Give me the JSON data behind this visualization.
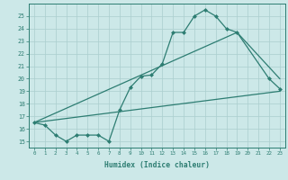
{
  "line1_x": [
    0,
    1,
    2,
    3,
    4,
    5,
    6,
    7,
    8,
    9,
    10,
    11,
    12,
    13,
    14,
    15,
    16,
    17,
    18,
    19,
    22,
    23
  ],
  "line1_y": [
    16.5,
    16.3,
    15.5,
    15.0,
    15.5,
    15.5,
    15.5,
    15.0,
    17.5,
    19.3,
    20.2,
    20.3,
    21.2,
    23.7,
    23.7,
    25.0,
    25.5,
    25.0,
    24.0,
    23.7,
    20.0,
    19.2
  ],
  "line2_x": [
    0,
    23
  ],
  "line2_y": [
    16.5,
    19.0
  ],
  "line3_x": [
    0,
    19,
    23
  ],
  "line3_y": [
    16.5,
    23.7,
    20.0
  ],
  "color": "#2d7d72",
  "bg_color": "#cce8e8",
  "grid_color": "#aacece",
  "xlabel": "Humidex (Indice chaleur)",
  "xlim": [
    -0.5,
    23.5
  ],
  "ylim": [
    14.5,
    26.0
  ],
  "yticks": [
    15,
    16,
    17,
    18,
    19,
    20,
    21,
    22,
    23,
    24,
    25
  ],
  "xticks": [
    0,
    1,
    2,
    3,
    4,
    5,
    6,
    7,
    8,
    9,
    10,
    11,
    12,
    13,
    14,
    15,
    16,
    17,
    18,
    19,
    20,
    21,
    22,
    23
  ],
  "marker": "D",
  "markersize": 2.5,
  "linewidth": 0.9
}
